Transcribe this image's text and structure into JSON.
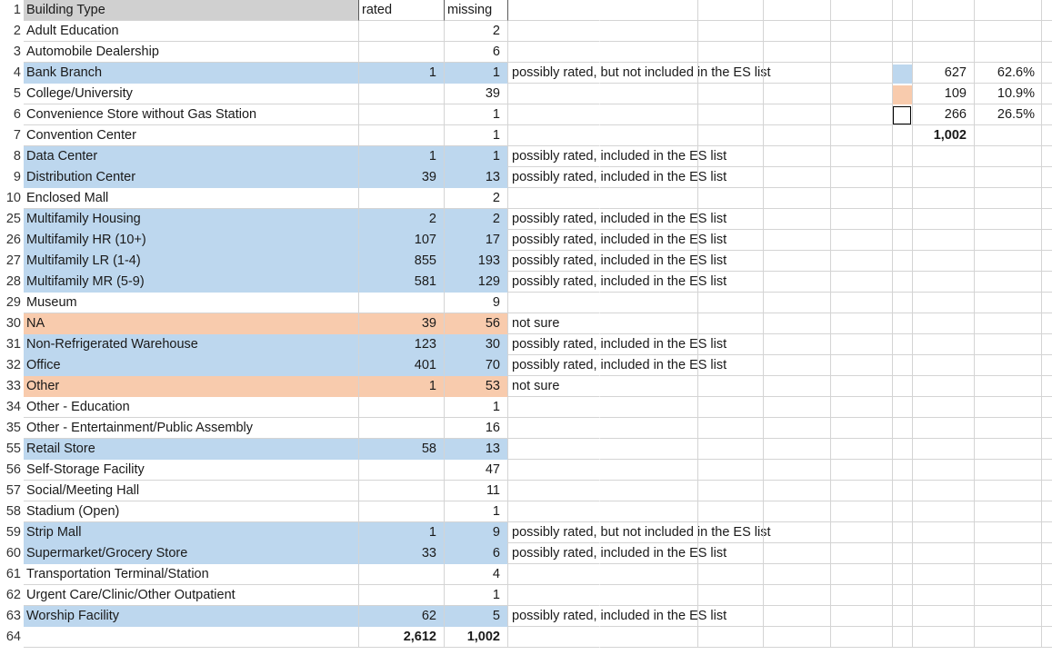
{
  "sheet": {
    "headers": {
      "a": "Building Type",
      "b": "rated",
      "c": "missing"
    },
    "rows": [
      {
        "n": "2",
        "a": "Adult Education",
        "b": "",
        "c": "2",
        "note": "",
        "fill": ""
      },
      {
        "n": "3",
        "a": "Automobile Dealership",
        "b": "",
        "c": "6",
        "note": "",
        "fill": ""
      },
      {
        "n": "4",
        "a": "Bank Branch",
        "b": "1",
        "c": "1",
        "note": "possibly rated, but not included in the ES list",
        "fill": "blue"
      },
      {
        "n": "5",
        "a": "College/University",
        "b": "",
        "c": "39",
        "note": "",
        "fill": ""
      },
      {
        "n": "6",
        "a": "Convenience Store without Gas Station",
        "b": "",
        "c": "1",
        "note": "",
        "fill": ""
      },
      {
        "n": "7",
        "a": "Convention Center",
        "b": "",
        "c": "1",
        "note": "",
        "fill": ""
      },
      {
        "n": "8",
        "a": "Data Center",
        "b": "1",
        "c": "1",
        "note": "possibly rated, included in the ES list",
        "fill": "blue"
      },
      {
        "n": "9",
        "a": "Distribution Center",
        "b": "39",
        "c": "13",
        "note": "possibly rated, included in the ES list",
        "fill": "blue"
      },
      {
        "n": "10",
        "a": "Enclosed Mall",
        "b": "",
        "c": "2",
        "note": "",
        "fill": ""
      },
      {
        "n": "25",
        "a": "Multifamily Housing",
        "b": "2",
        "c": "2",
        "note": "possibly rated, included in the ES list",
        "fill": "blue"
      },
      {
        "n": "26",
        "a": "Multifamily HR (10+)",
        "b": "107",
        "c": "17",
        "note": "possibly rated, included in the ES list",
        "fill": "blue"
      },
      {
        "n": "27",
        "a": "Multifamily LR (1-4)",
        "b": "855",
        "c": "193",
        "note": "possibly rated, included in the ES list",
        "fill": "blue"
      },
      {
        "n": "28",
        "a": "Multifamily MR (5-9)",
        "b": "581",
        "c": "129",
        "note": "possibly rated, included in the ES list",
        "fill": "blue"
      },
      {
        "n": "29",
        "a": "Museum",
        "b": "",
        "c": "9",
        "note": "",
        "fill": ""
      },
      {
        "n": "30",
        "a": "NA",
        "b": "39",
        "c": "56",
        "note": "not sure",
        "fill": "peach"
      },
      {
        "n": "31",
        "a": "Non-Refrigerated Warehouse",
        "b": "123",
        "c": "30",
        "note": "possibly rated, included in the ES list",
        "fill": "blue"
      },
      {
        "n": "32",
        "a": "Office",
        "b": "401",
        "c": "70",
        "note": "possibly rated, included in the ES list",
        "fill": "blue"
      },
      {
        "n": "33",
        "a": "Other",
        "b": "1",
        "c": "53",
        "note": "not sure",
        "fill": "peach"
      },
      {
        "n": "34",
        "a": "Other - Education",
        "b": "",
        "c": "1",
        "note": "",
        "fill": ""
      },
      {
        "n": "35",
        "a": "Other - Entertainment/Public Assembly",
        "b": "",
        "c": "16",
        "note": "",
        "fill": ""
      },
      {
        "n": "55",
        "a": "Retail Store",
        "b": "58",
        "c": "13",
        "note": "",
        "fill": "blue"
      },
      {
        "n": "56",
        "a": "Self-Storage Facility",
        "b": "",
        "c": "47",
        "note": "",
        "fill": ""
      },
      {
        "n": "57",
        "a": "Social/Meeting Hall",
        "b": "",
        "c": "11",
        "note": "",
        "fill": ""
      },
      {
        "n": "58",
        "a": "Stadium (Open)",
        "b": "",
        "c": "1",
        "note": "",
        "fill": ""
      },
      {
        "n": "59",
        "a": "Strip Mall",
        "b": "1",
        "c": "9",
        "note": "possibly rated, but not included in the ES list",
        "fill": "blue"
      },
      {
        "n": "60",
        "a": "Supermarket/Grocery Store",
        "b": "33",
        "c": "6",
        "note": "possibly rated, included in the ES list",
        "fill": "blue"
      },
      {
        "n": "61",
        "a": "Transportation Terminal/Station",
        "b": "",
        "c": "4",
        "note": "",
        "fill": ""
      },
      {
        "n": "62",
        "a": "Urgent Care/Clinic/Other Outpatient",
        "b": "",
        "c": "1",
        "note": "",
        "fill": ""
      },
      {
        "n": "63",
        "a": "Worship Facility",
        "b": "62",
        "c": "5",
        "note": "possibly rated, included in the ES list",
        "fill": "blue"
      }
    ],
    "totals": {
      "n": "64",
      "b": "2,612",
      "c": "1,002"
    },
    "header_row_num": "1"
  },
  "summary": {
    "rows": [
      {
        "swatch": "blue",
        "count": "627",
        "pct": "62.6%"
      },
      {
        "swatch": "peach",
        "count": "109",
        "pct": "10.9%"
      },
      {
        "swatch": "white",
        "count": "266",
        "pct": "26.5%"
      }
    ],
    "total": "1,002"
  },
  "colors": {
    "blue": "#bdd7ee",
    "peach": "#f8cbad",
    "header": "#d0d0d0"
  }
}
